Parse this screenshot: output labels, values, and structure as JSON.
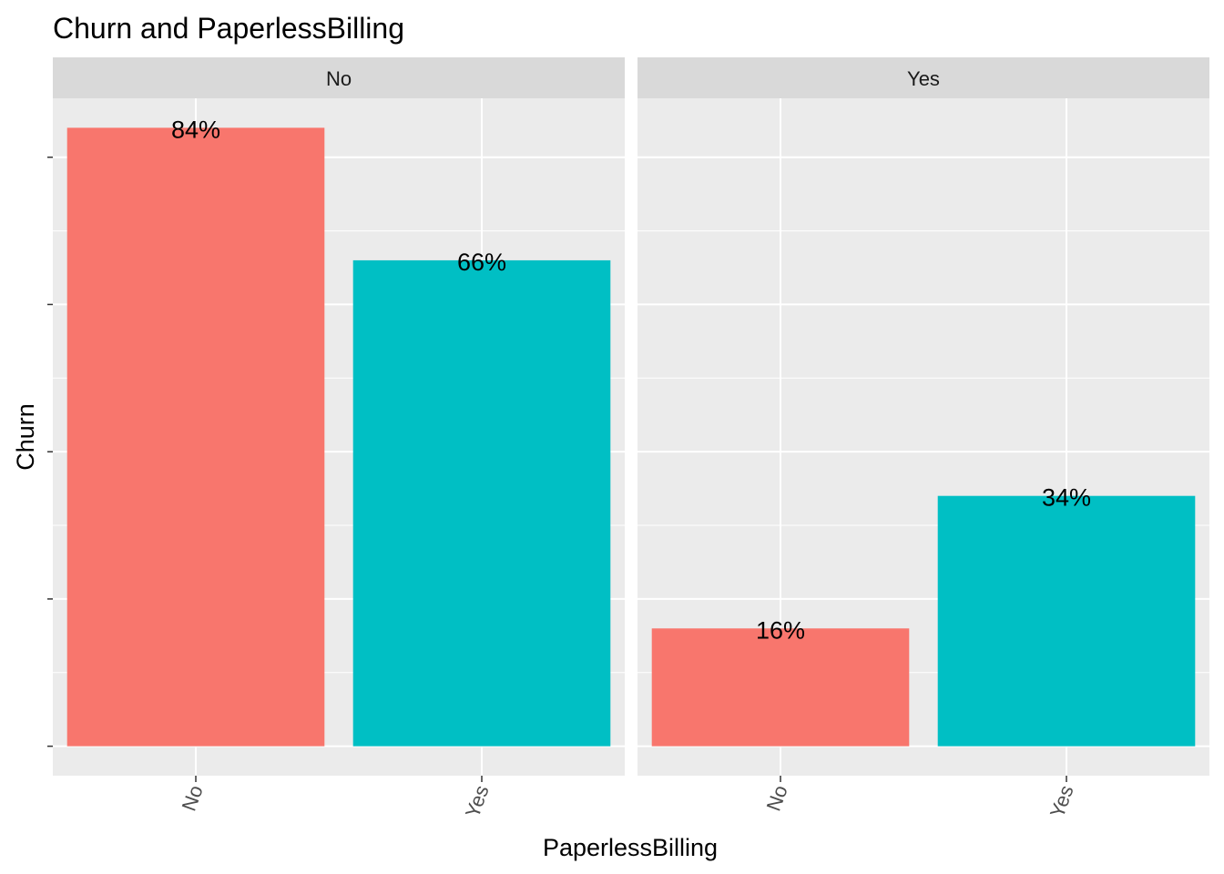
{
  "chart_data": {
    "type": "bar",
    "title": "Churn and PaperlessBilling",
    "xlabel": "PaperlessBilling",
    "ylabel": "Churn",
    "categories": [
      "No",
      "Yes"
    ],
    "facets": [
      {
        "label": "No",
        "bars": [
          {
            "category": "No",
            "value": 84,
            "label": "84%"
          },
          {
            "category": "Yes",
            "value": 66,
            "label": "66%"
          }
        ]
      },
      {
        "label": "Yes",
        "bars": [
          {
            "category": "No",
            "value": 16,
            "label": "16%"
          },
          {
            "category": "Yes",
            "value": 34,
            "label": "34%"
          }
        ]
      }
    ],
    "ylim": [
      -4,
      88
    ],
    "y_ticks_shown": false,
    "grid": true,
    "legend": "none"
  },
  "colors": {
    "No": "#F8766D",
    "Yes": "#00BFC4",
    "panel_bg": "#EBEBEB",
    "strip_bg": "#D9D9D9",
    "grid": "#FFFFFF"
  }
}
